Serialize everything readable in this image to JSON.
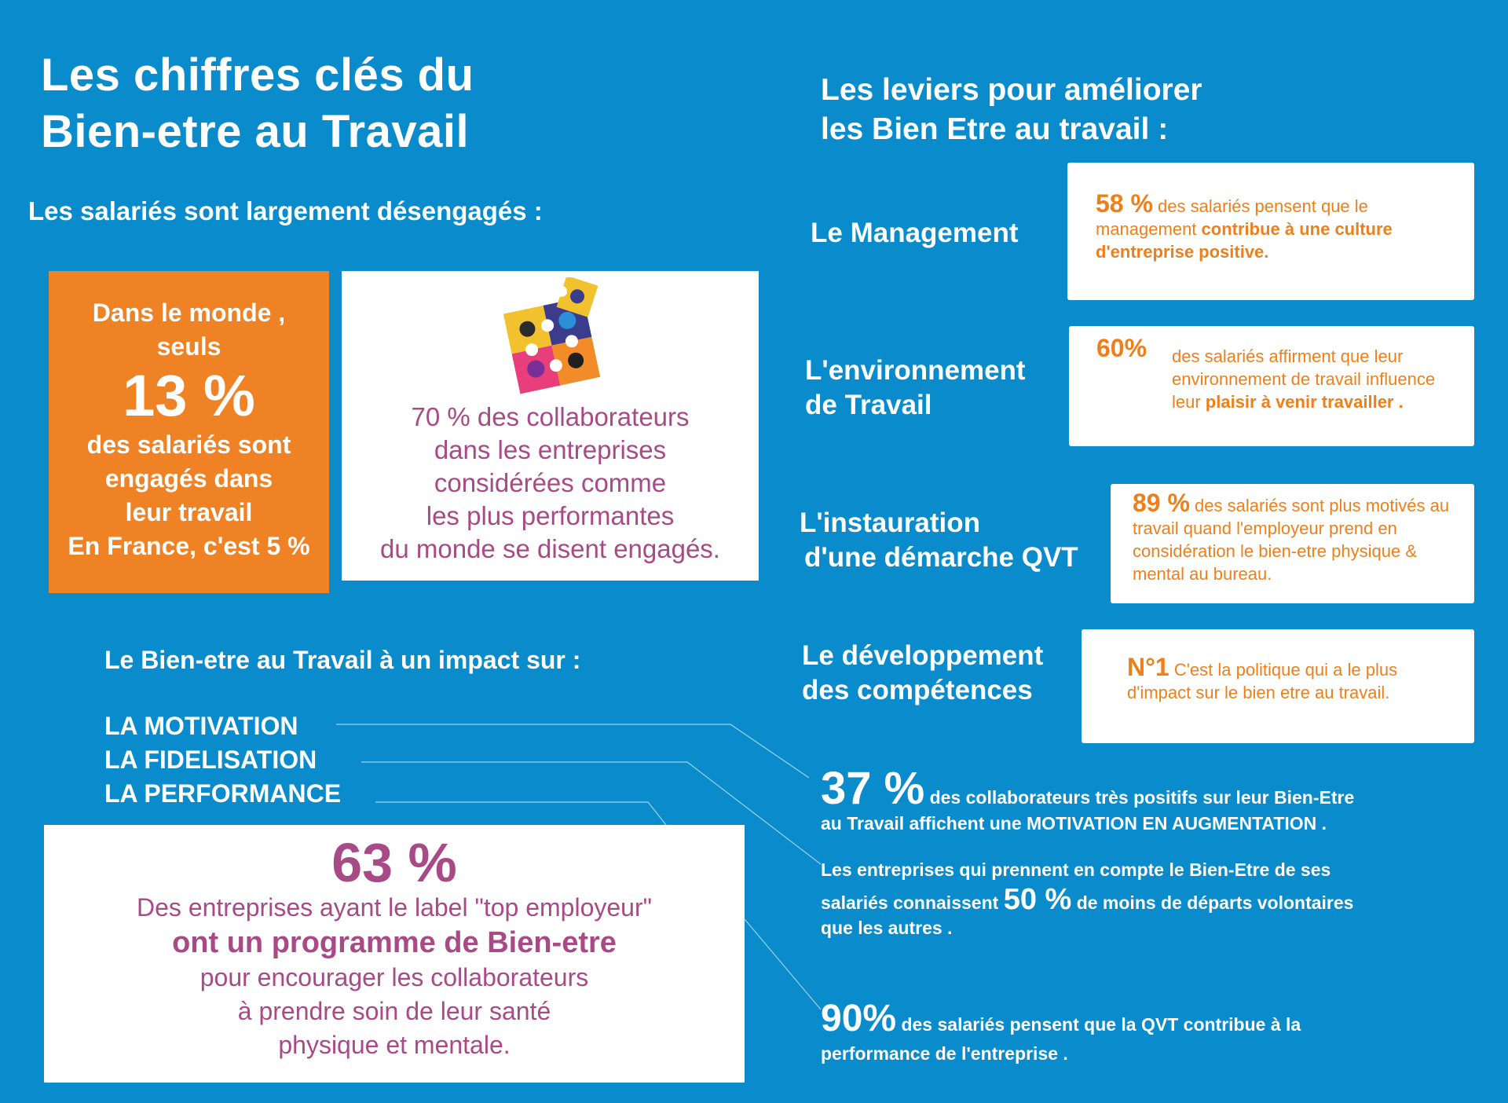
{
  "title": {
    "line1": "Les chiffres clés du",
    "line2": "Bien-etre au Travail"
  },
  "left": {
    "subtitle": "Les salariés sont largement désengagés :",
    "orange_box": {
      "line1": "Dans le monde ,",
      "line2": "seuls",
      "big": "13 %",
      "line3": "des salariés sont",
      "line4": "engagés dans",
      "line5": "leur travail",
      "line6": "En France, c'est 5 %"
    },
    "puzzle_box": {
      "lines": [
        "70 % des collaborateurs",
        "dans les entreprises",
        "considérées comme",
        "les plus performantes",
        "du monde se disent engagés."
      ]
    },
    "impact": {
      "title": "Le Bien-etre au Travail à un impact sur :",
      "items": [
        "LA MOTIVATION",
        "LA FIDELISATION",
        "LA PERFORMANCE"
      ]
    },
    "box63": {
      "big": "63 %",
      "line1": "Des entreprises ayant le label \"top employeur\"",
      "bold": "ont un programme de Bien-etre",
      "line2": "pour encourager les collaborateurs",
      "line3": "à prendre soin de leur santé",
      "line4": "physique et mentale."
    }
  },
  "right": {
    "title": {
      "line1": "Les leviers pour améliorer",
      "line2": "les Bien Etre au travail :"
    },
    "levers": [
      {
        "label1": "Le Management",
        "label2": "",
        "big": "58 %",
        "text": " des salariés pensent que le management ",
        "bold": "contribue à une culture d'entreprise positive.",
        "tail": ""
      },
      {
        "label1": "L'environnement",
        "label2": "de Travail",
        "big": "60%",
        "text": "des salariés affirment que leur environnement de travail influence leur ",
        "bold": "plaisir à venir travailler",
        "tail": " ."
      },
      {
        "label1": "L'instauration",
        "label2": "d'une démarche QVT",
        "big": "89 %",
        "text": " des salariés sont plus motivés au travail quand l'employeur prend en considération le bien-etre physique & mental au bureau.",
        "bold": "",
        "tail": ""
      },
      {
        "label1": "Le développement",
        "label2": "des compétences",
        "big": "N°1",
        "text": " C'est la politique qui a le plus d'impact sur le bien etre au travail.",
        "bold": "",
        "tail": ""
      }
    ],
    "stats": {
      "s37": {
        "big": "37 %",
        "text1": " des collaborateurs très positifs sur leur Bien-Etre",
        "text2": "au Travail affichent une MOTIVATION EN AUGMENTATION ."
      },
      "s50": {
        "text1": "Les entreprises qui prennent en compte le Bien-Etre de ses",
        "pre": "salariés connaissent ",
        "big": "50 %",
        "post": " de moins de départs volontaires",
        "text3": "que les autres ."
      },
      "s90": {
        "big": "90%",
        "text1": " des salariés pensent que la QVT contribue à la",
        "text2": "performance de l'entreprise ."
      }
    }
  },
  "colors": {
    "background": "#0A8BCC",
    "orange": "#EE7F1A",
    "purple": "#A84A86",
    "white": "#FFFFFF"
  },
  "icons": {
    "puzzle": "puzzle-icon"
  }
}
